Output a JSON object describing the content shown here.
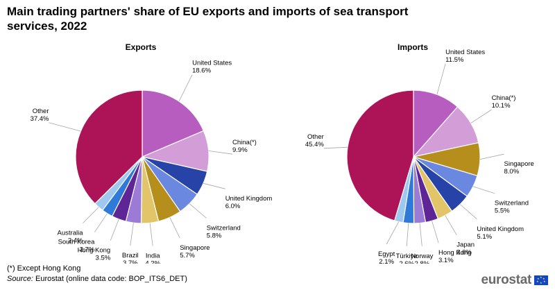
{
  "title": "Main trading partners' share of EU exports and imports of sea transport services, 2022",
  "footnote": "(*) Except Hong Kong",
  "source": {
    "label": "Source:",
    "text": "Eurostat (online data code: BOP_ITS6_DET)"
  },
  "logo": {
    "text": "eurostat"
  },
  "colors": {
    "United States": "#b75dbf",
    "China(*)": "#d39ed8",
    "United Kingdom": "#2743a8",
    "Switzerland": "#6b88e0",
    "Singapore": "#b58e1c",
    "India": "#e3c569",
    "Hong Kong": "#5e2597",
    "Brazil": "#9b7bd6",
    "South Korea": "#2f7ad8",
    "Australia": "#9ec8f0",
    "Japan": "#e3c569",
    "Norway": "#9b7bd6",
    "Türkiye": "#2f7ad8",
    "Egypt": "#9ec8f0",
    "Other": "#ad1458",
    "leader": "#a6a6a6"
  },
  "chart_data": [
    {
      "type": "pie",
      "title": "Exports",
      "unit": "%",
      "slices": [
        {
          "label": "United States",
          "value": 18.6,
          "display": "18.6%"
        },
        {
          "label": "China(*)",
          "value": 9.9,
          "display": "9.9%"
        },
        {
          "label": "United Kingdom",
          "value": 6.0,
          "display": "6.0%"
        },
        {
          "label": "Switzerland",
          "value": 5.8,
          "display": "5.8%"
        },
        {
          "label": "Singapore",
          "value": 5.7,
          "display": "5.7%"
        },
        {
          "label": "India",
          "value": 4.2,
          "display": "4.2%"
        },
        {
          "label": "Brazil",
          "value": 3.7,
          "display": "3.7%"
        },
        {
          "label": "Hong Kong",
          "value": 3.5,
          "display": "3.5%"
        },
        {
          "label": "South Korea",
          "value": 2.7,
          "display": "2.7%"
        },
        {
          "label": "Australia",
          "value": 2.4,
          "display": "2.4%"
        },
        {
          "label": "Other",
          "value": 37.4,
          "display": "37.4%"
        }
      ]
    },
    {
      "type": "pie",
      "title": "Imports",
      "unit": "%",
      "slices": [
        {
          "label": "United States",
          "value": 11.5,
          "display": "11.5%"
        },
        {
          "label": "China(*)",
          "value": 10.1,
          "display": "10.1%"
        },
        {
          "label": "Singapore",
          "value": 8.0,
          "display": "8.0%"
        },
        {
          "label": "Switzerland",
          "value": 5.5,
          "display": "5.5%"
        },
        {
          "label": "United Kingdom",
          "value": 5.1,
          "display": "5.1%"
        },
        {
          "label": "Japan",
          "value": 3.8,
          "display": "3.8%"
        },
        {
          "label": "Hong Kong",
          "value": 3.1,
          "display": "3.1%"
        },
        {
          "label": "Norway",
          "value": 2.8,
          "display": "2.8%"
        },
        {
          "label": "Türkiye",
          "value": 2.6,
          "display": "2.6%"
        },
        {
          "label": "Egypt",
          "value": 2.1,
          "display": "2.1%"
        },
        {
          "label": "Other",
          "value": 45.4,
          "display": "45.4%"
        }
      ]
    }
  ]
}
